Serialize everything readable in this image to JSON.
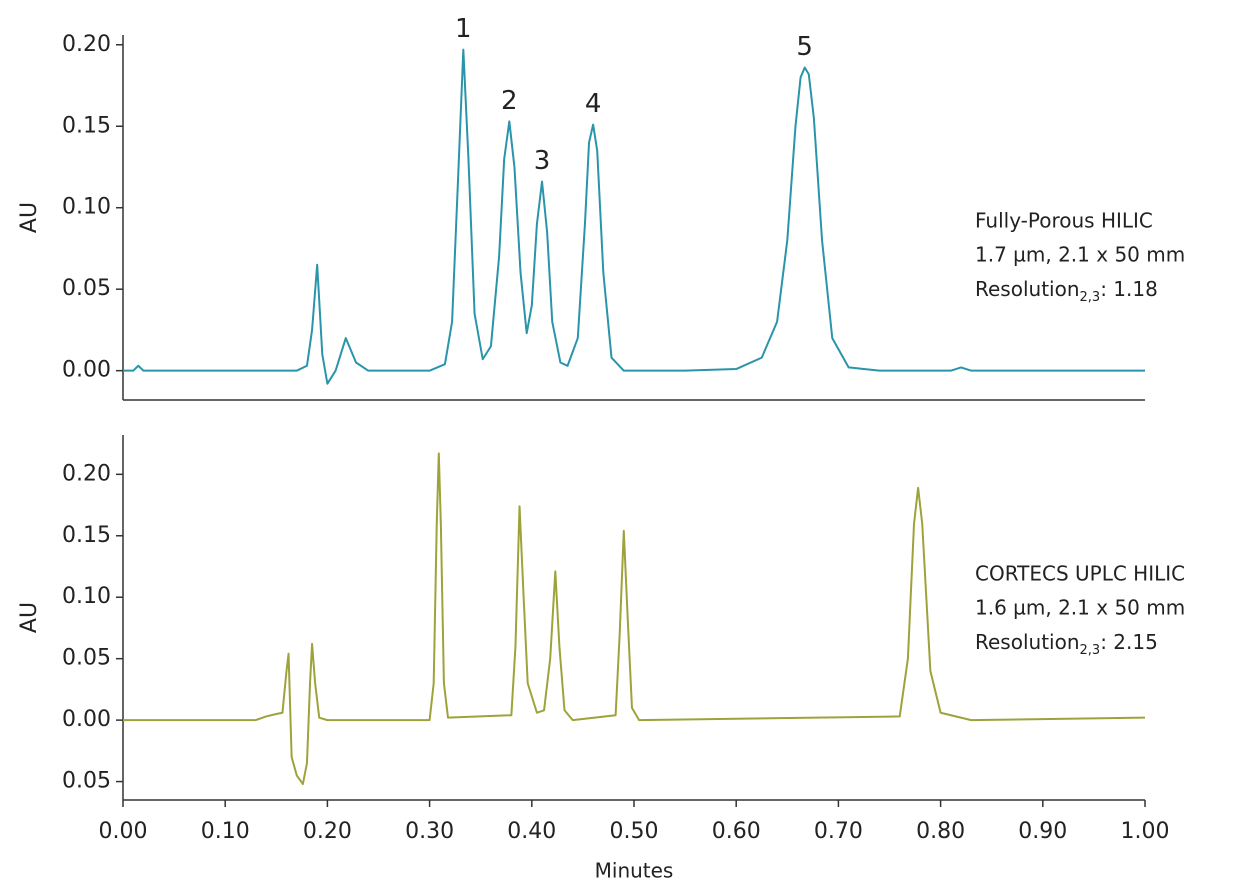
{
  "chart_data": [
    {
      "type": "line",
      "ylabel": "AU",
      "color": "#2a94ab",
      "xlim": [
        0,
        1
      ],
      "ylim": [
        -0.018,
        0.206
      ],
      "yticks": [
        {
          "value": 0,
          "label": "0.00"
        },
        {
          "value": 0.05,
          "label": "0.05"
        },
        {
          "value": 0.1,
          "label": "0.10"
        },
        {
          "value": 0.15,
          "label": "0.15"
        },
        {
          "value": 0.2,
          "label": "0.20"
        }
      ],
      "x": [
        0,
        0.01,
        0.015,
        0.02,
        0.1,
        0.17,
        0.18,
        0.185,
        0.19,
        0.195,
        0.2,
        0.208,
        0.218,
        0.228,
        0.24,
        0.3,
        0.315,
        0.322,
        0.328,
        0.333,
        0.338,
        0.344,
        0.352,
        0.36,
        0.368,
        0.373,
        0.378,
        0.383,
        0.389,
        0.395,
        0.4,
        0.405,
        0.41,
        0.415,
        0.42,
        0.428,
        0.435,
        0.445,
        0.452,
        0.456,
        0.46,
        0.464,
        0.47,
        0.478,
        0.49,
        0.55,
        0.6,
        0.625,
        0.64,
        0.65,
        0.658,
        0.663,
        0.667,
        0.671,
        0.676,
        0.684,
        0.694,
        0.71,
        0.74,
        0.81,
        0.82,
        0.83,
        1.0
      ],
      "values": [
        0,
        0,
        0.003,
        0,
        0,
        0,
        0.003,
        0.025,
        0.065,
        0.01,
        -0.008,
        0,
        0.02,
        0.005,
        0,
        0,
        0.004,
        0.03,
        0.12,
        0.197,
        0.13,
        0.035,
        0.007,
        0.015,
        0.07,
        0.13,
        0.153,
        0.125,
        0.06,
        0.023,
        0.04,
        0.09,
        0.116,
        0.085,
        0.03,
        0.005,
        0.003,
        0.02,
        0.09,
        0.14,
        0.151,
        0.135,
        0.06,
        0.008,
        0,
        0,
        0.001,
        0.008,
        0.03,
        0.08,
        0.15,
        0.18,
        0.186,
        0.182,
        0.155,
        0.08,
        0.02,
        0.002,
        0,
        0,
        0.002,
        0,
        0
      ],
      "annotations": [
        {
          "text": "1",
          "x": 0.333,
          "y": 0.197
        },
        {
          "text": "2",
          "x": 0.378,
          "y": 0.153
        },
        {
          "text": "3",
          "x": 0.41,
          "y": 0.116
        },
        {
          "text": "4",
          "x": 0.46,
          "y": 0.151
        },
        {
          "text": "5",
          "x": 0.667,
          "y": 0.186
        }
      ],
      "notes": [
        "Fully-Porous HILIC",
        "1.7 µm, 2.1 x 50 mm"
      ],
      "resolution": {
        "text": "Resolution",
        "subscript": "2,3",
        "rest": ": 1.18"
      }
    },
    {
      "type": "line",
      "ylabel": "AU",
      "xlabel": "Minutes",
      "color": "#9da33a",
      "xlim": [
        0,
        1
      ],
      "ylim": [
        -0.065,
        0.232
      ],
      "xticks": [
        {
          "value": 0,
          "label": "0.00"
        },
        {
          "value": 0.1,
          "label": "0.10"
        },
        {
          "value": 0.2,
          "label": "0.20"
        },
        {
          "value": 0.3,
          "label": "0.30"
        },
        {
          "value": 0.4,
          "label": "0.40"
        },
        {
          "value": 0.5,
          "label": "0.50"
        },
        {
          "value": 0.6,
          "label": "0.60"
        },
        {
          "value": 0.7,
          "label": "0.70"
        },
        {
          "value": 0.8,
          "label": "0.80"
        },
        {
          "value": 0.9,
          "label": "0.90"
        },
        {
          "value": 1,
          "label": "1.00"
        }
      ],
      "yticks": [
        {
          "value": -0.05,
          "label": "0.05"
        },
        {
          "value": 0,
          "label": "0.00"
        },
        {
          "value": 0.05,
          "label": "0.05"
        },
        {
          "value": 0.1,
          "label": "0.10"
        },
        {
          "value": 0.15,
          "label": "0.15"
        },
        {
          "value": 0.2,
          "label": "0.20"
        }
      ],
      "x": [
        0,
        0.13,
        0.14,
        0.15,
        0.156,
        0.16,
        0.162,
        0.165,
        0.17,
        0.176,
        0.18,
        0.183,
        0.185,
        0.188,
        0.192,
        0.2,
        0.3,
        0.304,
        0.307,
        0.309,
        0.311,
        0.314,
        0.318,
        0.38,
        0.384,
        0.388,
        0.392,
        0.396,
        0.405,
        0.412,
        0.418,
        0.423,
        0.427,
        0.432,
        0.44,
        0.482,
        0.486,
        0.49,
        0.494,
        0.498,
        0.505,
        0.76,
        0.768,
        0.774,
        0.778,
        0.782,
        0.79,
        0.8,
        0.83,
        1.0
      ],
      "values": [
        0,
        0,
        0.003,
        0.005,
        0.006,
        0.04,
        0.054,
        -0.03,
        -0.045,
        -0.052,
        -0.035,
        0.03,
        0.062,
        0.03,
        0.002,
        0,
        0,
        0.03,
        0.16,
        0.217,
        0.16,
        0.03,
        0.002,
        0.004,
        0.06,
        0.174,
        0.1,
        0.03,
        0.006,
        0.008,
        0.05,
        0.121,
        0.06,
        0.008,
        0,
        0.004,
        0.07,
        0.154,
        0.08,
        0.01,
        0,
        0.003,
        0.05,
        0.16,
        0.189,
        0.16,
        0.04,
        0.006,
        0,
        0.002
      ],
      "notes": [
        "CORTECS UPLC HILIC",
        "1.6 µm, 2.1 x 50 mm"
      ],
      "resolution": {
        "text": "Resolution",
        "subscript": "2,3",
        "rest": ": 2.15"
      }
    }
  ]
}
